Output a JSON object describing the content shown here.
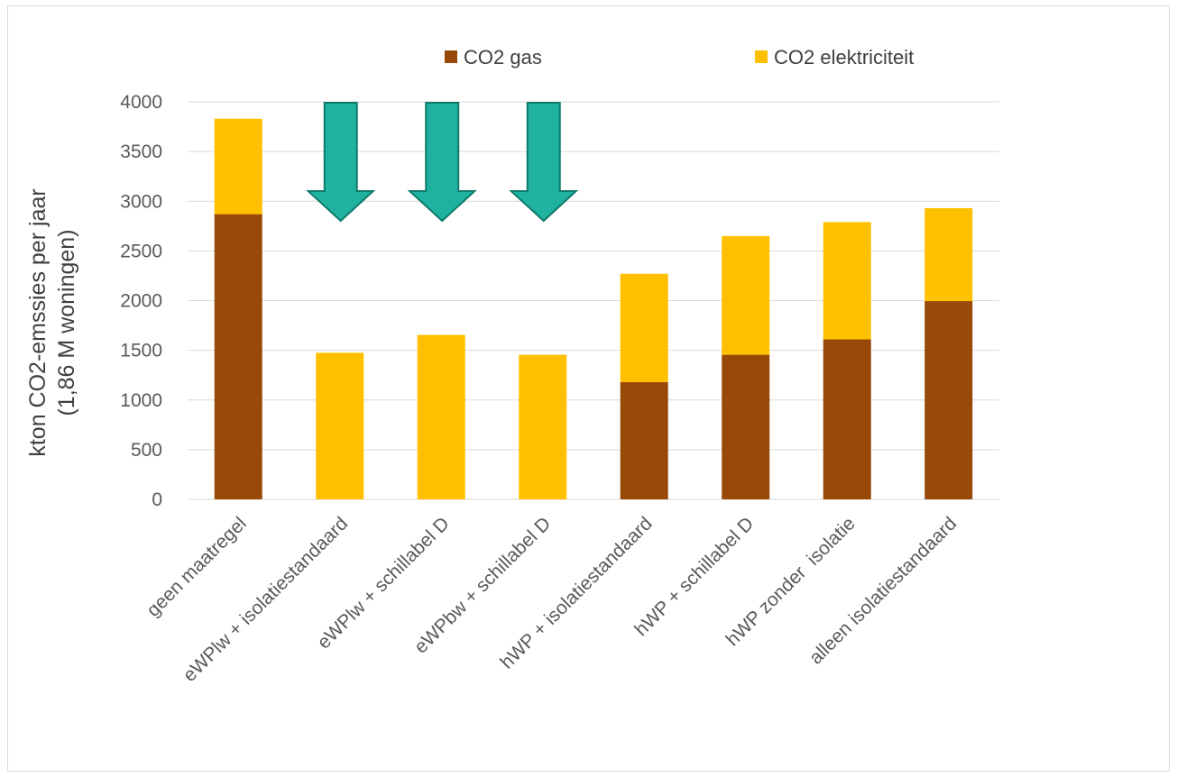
{
  "chart_data": {
    "type": "bar",
    "stacked": true,
    "categories": [
      "geen maatregel",
      "eWPlw + isolatiestandaard",
      "eWPlw + schillabel D",
      "eWPbw + schillabel D",
      "hWP + isolatiestandaard",
      "hWP + schillabel D",
      "hWP zonder  isolatie",
      "alleen isolatiestandaard"
    ],
    "series": [
      {
        "name": "CO2 gas",
        "color": "#984807",
        "values": [
          2870,
          0,
          0,
          0,
          1180,
          1455,
          1610,
          1995
        ]
      },
      {
        "name": "CO2 elektriciteit",
        "color": "#ffc000",
        "values": [
          960,
          1475,
          1655,
          1455,
          1090,
          1195,
          1180,
          935
        ]
      }
    ],
    "ylabel_line1": "kton CO2-emssies per jaar",
    "ylabel_line2": "(1,86 M woningen)",
    "yticks": [
      "0",
      "500",
      "1000",
      "1500",
      "2000",
      "2500",
      "3000",
      "3500",
      "4000"
    ],
    "ylim": [
      0,
      4000
    ],
    "grid": true,
    "legend_position": "top",
    "annotation_arrows": {
      "color": "#20b2a0",
      "stroke": "#0f7a6a",
      "direction": "down",
      "over_categories": [
        1,
        2,
        3
      ]
    }
  }
}
